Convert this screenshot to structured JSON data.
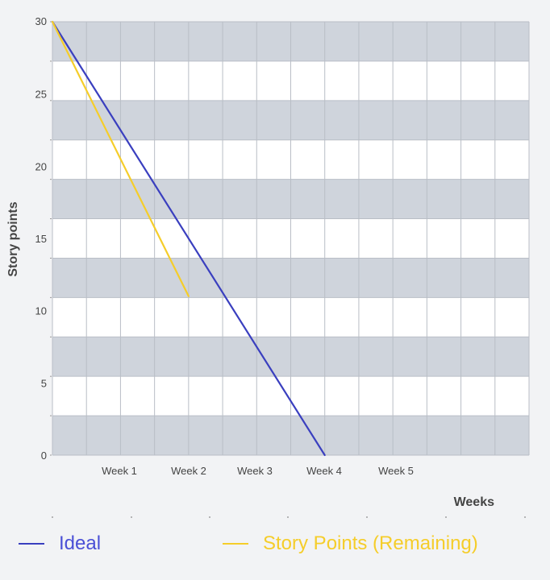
{
  "chart_data": {
    "type": "line",
    "title": "",
    "xlabel": "Weeks",
    "ylabel": "Story points",
    "ylim": [
      0,
      30
    ],
    "xlim": [
      0,
      7
    ],
    "y_ticks": [
      0,
      5,
      10,
      15,
      20,
      25,
      30
    ],
    "x_ticks": [
      {
        "label": "Week 1",
        "value": 1
      },
      {
        "label": "Week 2",
        "value": 2
      },
      {
        "label": "Week 3",
        "value": 3
      },
      {
        "label": "Week 4",
        "value": 4
      },
      {
        "label": "Week 5",
        "value": 5
      }
    ],
    "grid": true,
    "legend_position": "bottom",
    "series": [
      {
        "name": "Ideal",
        "color": "#3a3fbf",
        "points": [
          {
            "x": 0,
            "y": 30
          },
          {
            "x": 4,
            "y": 0
          }
        ]
      },
      {
        "name": "Story Points (Remaining)",
        "color": "#f5cd2a",
        "points": [
          {
            "x": 0,
            "y": 30
          },
          {
            "x": 2,
            "y": 11
          }
        ]
      }
    ],
    "colors": {
      "band": "#cfd4dc",
      "plot_bg": "#ffffff",
      "grid": "#b9bec6"
    }
  }
}
